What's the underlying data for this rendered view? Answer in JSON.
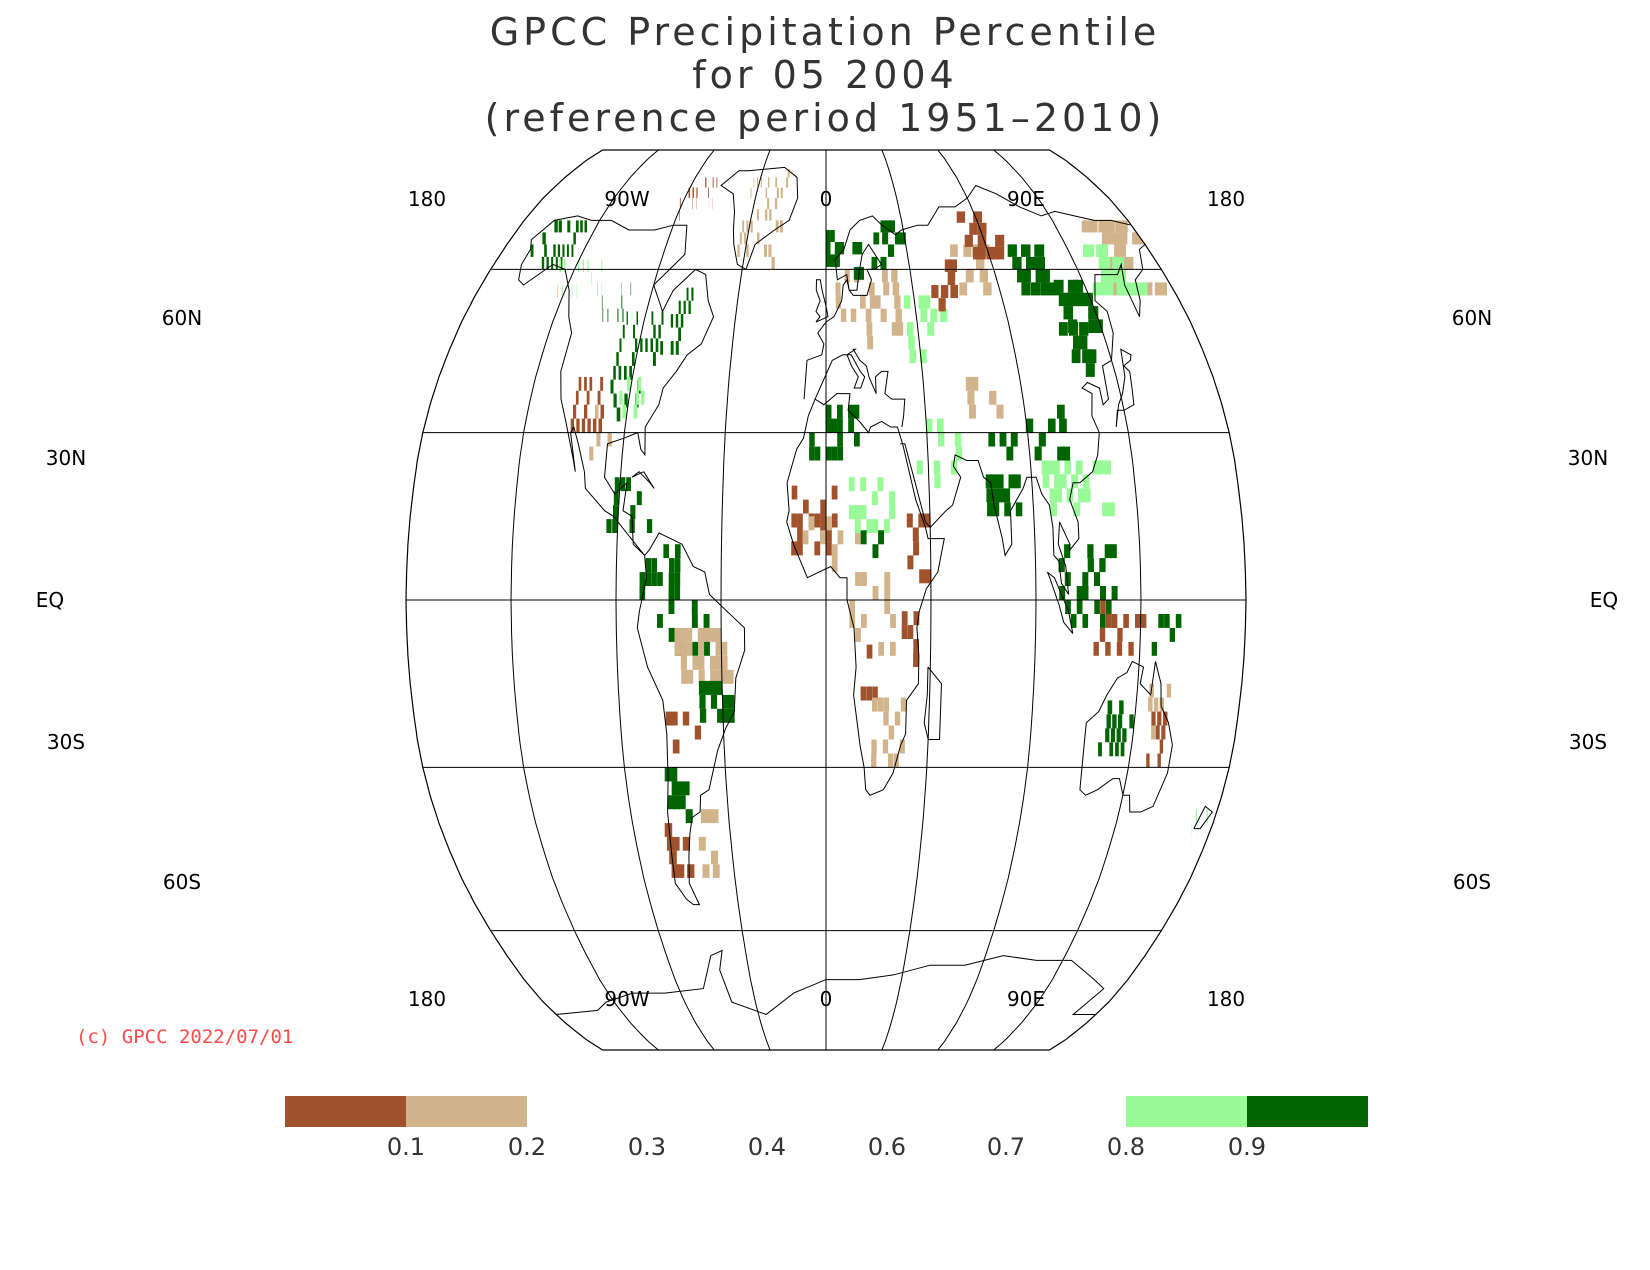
{
  "title": {
    "line1": "GPCC Precipitation Percentile",
    "line2": "for 05 2004",
    "line3": "(reference period 1951–2010)"
  },
  "copyright": "(c) GPCC 2022/07/01",
  "map": {
    "projection": "Robinson",
    "center_longitude": 0,
    "lon_labels_top": [
      "180",
      "90W",
      "0",
      "90E",
      "180"
    ],
    "lon_labels_bottom": [
      "180",
      "90W",
      "0",
      "90E",
      "180"
    ],
    "lat_labels_left": [
      "60N",
      "30N",
      "EQ",
      "30S",
      "60S"
    ],
    "lat_labels_right": [
      "60N",
      "30N",
      "EQ",
      "30S",
      "60S"
    ]
  },
  "legend": {
    "ticks": [
      "0.1",
      "0.2",
      "0.3",
      "0.4",
      "0.6",
      "0.7",
      "0.8",
      "0.9"
    ],
    "bins": [
      {
        "range": "< 0.1",
        "color": "#a0522d"
      },
      {
        "range": "0.1–0.2",
        "color": "#d2b48c"
      },
      {
        "range": "0.2–0.8",
        "color": "#ffffff"
      },
      {
        "range": "0.8–0.9",
        "color": "#98fb98"
      },
      {
        "range": "> 0.9",
        "color": "#006400"
      }
    ]
  },
  "colors": {
    "very_dry": "#a0522d",
    "dry": "#d2b48c",
    "wet": "#98fb98",
    "very_wet": "#006400",
    "grid": "#000000",
    "copyright": "#ff4a4a"
  }
}
